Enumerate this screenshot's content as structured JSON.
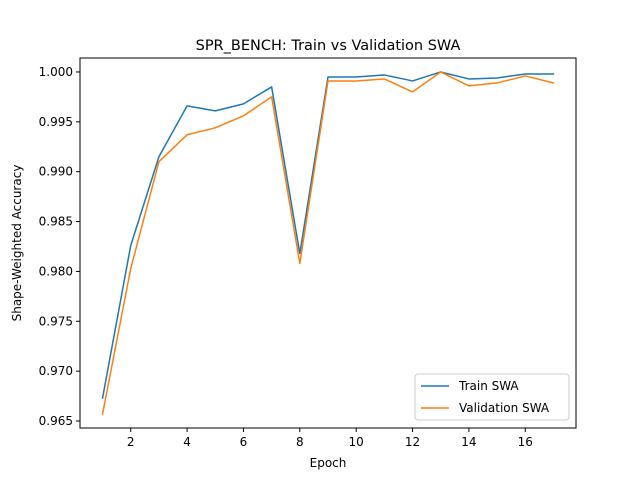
{
  "chart_data": {
    "type": "line",
    "title": "SPR_BENCH: Train vs Validation SWA",
    "xlabel": "Epoch",
    "ylabel": "Shape-Weighted Accuracy",
    "x": [
      1,
      2,
      3,
      4,
      5,
      6,
      7,
      8,
      9,
      10,
      11,
      12,
      13,
      14,
      15,
      16,
      17
    ],
    "xlim": [
      0.2,
      17.8
    ],
    "ylim": [
      0.9643,
      1.0014
    ],
    "xticks": [
      2,
      4,
      6,
      8,
      10,
      12,
      14,
      16
    ],
    "xtick_labels": [
      "2",
      "4",
      "6",
      "8",
      "10",
      "12",
      "14",
      "16"
    ],
    "yticks": [
      0.965,
      0.97,
      0.975,
      0.98,
      0.985,
      0.99,
      0.995,
      1.0
    ],
    "ytick_labels": [
      "0.965",
      "0.970",
      "0.975",
      "0.980",
      "0.985",
      "0.990",
      "0.995",
      "1.000"
    ],
    "grid": false,
    "legend_position": "lower-right",
    "series": [
      {
        "name": "Train SWA",
        "color": "#1f77b4",
        "values": [
          0.9673,
          0.9826,
          0.9915,
          0.9966,
          0.9961,
          0.9968,
          0.9985,
          0.9818,
          0.9995,
          0.9995,
          0.9997,
          0.9991,
          1.0,
          0.9993,
          0.9994,
          0.9998,
          0.9998
        ]
      },
      {
        "name": "Validation SWA",
        "color": "#ff7f0e",
        "values": [
          0.9657,
          0.9803,
          0.991,
          0.9937,
          0.9944,
          0.9956,
          0.9975,
          0.9808,
          0.9991,
          0.9991,
          0.9993,
          0.998,
          1.0,
          0.9986,
          0.9989,
          0.9996,
          0.9989
        ]
      }
    ]
  }
}
